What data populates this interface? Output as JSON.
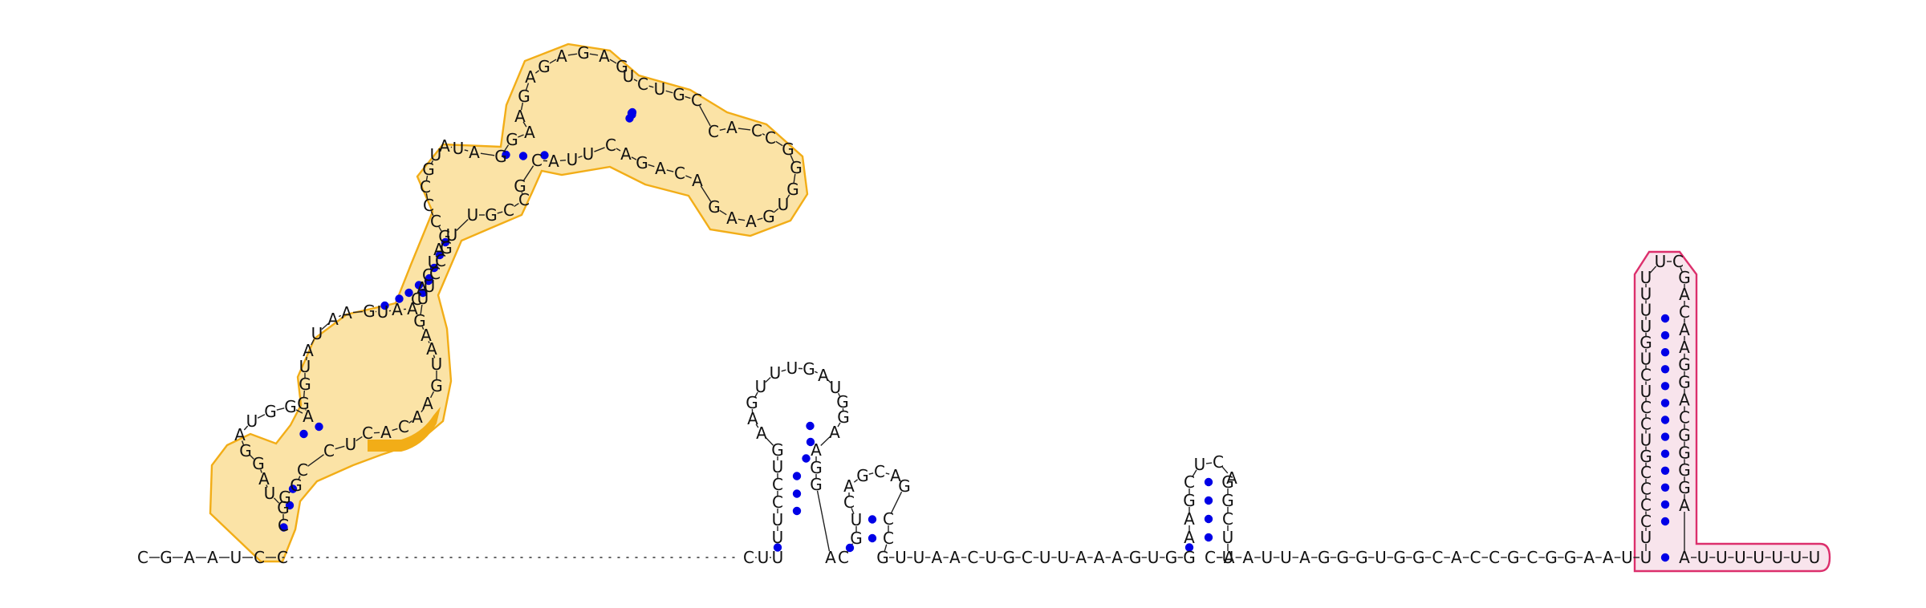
{
  "colors": {
    "base_pair": "#0000e6",
    "highlight_orange_fill": "#fbe3a6",
    "highlight_orange_stroke": "#f2ad17",
    "highlight_orange_strong": "#f2ad17",
    "highlight_pink_fill": "#f8e4ec",
    "highlight_pink_stroke": "#dc2f6c"
  },
  "segments": {
    "left_tail": [
      "C",
      "G",
      "A",
      "A",
      "U",
      "C",
      "C"
    ],
    "dom1_h1": [
      "C",
      "G",
      "U",
      "A",
      "G",
      "G",
      "A",
      "U",
      "G",
      "G",
      "A",
      "G",
      "G",
      "U",
      "A",
      "U",
      "A",
      "A",
      "G",
      "U",
      "A",
      "A"
    ],
    "dom1_h2": [
      "C",
      "A",
      "C",
      "U",
      "A",
      "G",
      "C",
      "C",
      "C",
      "G",
      "U",
      "A"
    ],
    "dom1_h3": [
      "U",
      "A",
      "G",
      "G",
      "A",
      "A",
      "G",
      "A",
      "G",
      "A",
      "G",
      "A",
      "G"
    ],
    "dom1_h4": [
      "U",
      "C",
      "U",
      "G",
      "C",
      "C",
      "A",
      "C",
      "C",
      "G",
      "G",
      "G",
      "U",
      "G",
      "A",
      "A",
      "G",
      "A",
      "C",
      "A",
      "G",
      "A",
      "C"
    ],
    "dom1_h5": [
      "U",
      "U",
      "A",
      "C",
      "G",
      "C",
      "C",
      "G",
      "U",
      "U",
      "G",
      "C",
      "C",
      "U",
      "U",
      "G",
      "A",
      "A",
      "U",
      "G",
      "A",
      "A",
      "C",
      "A",
      "C",
      "U",
      "C",
      "C",
      "G",
      "G"
    ],
    "linker_left": [
      "C",
      "U",
      "U"
    ],
    "hairpin2": [
      "U",
      "U",
      "C",
      "C",
      "U",
      "G",
      "A",
      "A",
      "G",
      "U",
      "U",
      "U",
      "G",
      "A",
      "U",
      "G",
      "G",
      "A",
      "A",
      "G",
      "G"
    ],
    "dinuc": [
      "A",
      "C"
    ],
    "hairpin3": [
      "G",
      "U",
      "C",
      "A",
      "G",
      "C",
      "A",
      "G",
      "C",
      "C"
    ],
    "linker_mid": [
      "G",
      "U",
      "U",
      "A",
      "A",
      "C",
      "U",
      "G",
      "C",
      "U",
      "U",
      "A",
      "A",
      "A",
      "G",
      "U",
      "G",
      "G"
    ],
    "hairpin4": [
      "A",
      "A",
      "G",
      "C",
      "U",
      "C",
      "A",
      "G",
      "G",
      "C",
      "U",
      "U"
    ],
    "linker_right": [
      "C",
      "A",
      "A",
      "U",
      "U",
      "A",
      "G",
      "G",
      "G",
      "U",
      "G",
      "G",
      "C",
      "A",
      "C",
      "C",
      "G",
      "C",
      "G",
      "G",
      "A",
      "A",
      "U",
      "U"
    ],
    "terminator_5p": [
      "U",
      "C",
      "C",
      "C",
      "C",
      "G",
      "U",
      "C",
      "C",
      "U",
      "C",
      "U",
      "G",
      "U",
      "U",
      "U",
      "U"
    ],
    "terminator_loop": [
      "U",
      "C",
      "G"
    ],
    "terminator_3p": [
      "A",
      "C",
      "A",
      "A",
      "G",
      "G",
      "A",
      "C",
      "G",
      "G",
      "G",
      "G",
      "A"
    ],
    "right_tail": [
      "A",
      "U",
      "U",
      "U",
      "U",
      "U",
      "U",
      "U"
    ]
  }
}
